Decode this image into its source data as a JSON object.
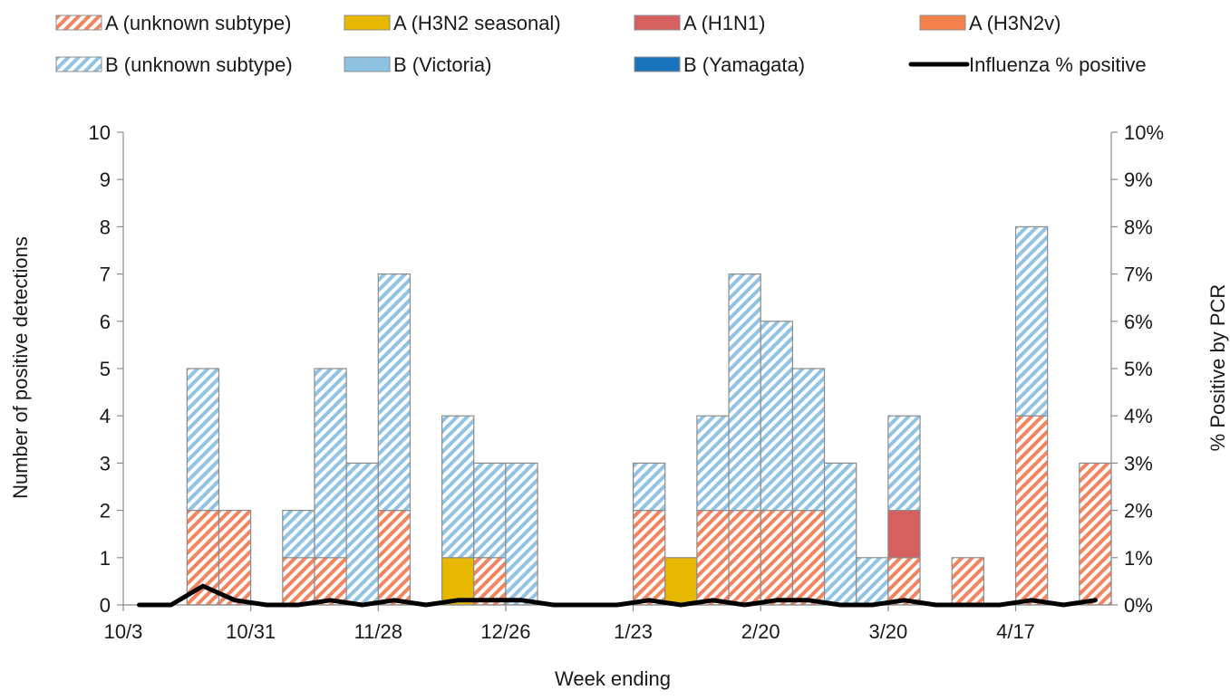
{
  "chart_data": {
    "type": "bar",
    "stacked": true,
    "xlabel": "Week ending",
    "ylabel": "Number of positive detections",
    "y2label": "% Positive by PCR",
    "ylim": [
      0,
      10
    ],
    "y2lim": [
      0,
      10
    ],
    "yticks": [
      "0",
      "1",
      "2",
      "3",
      "4",
      "5",
      "6",
      "7",
      "8",
      "9",
      "10"
    ],
    "y2ticks": [
      "0%",
      "1%",
      "2%",
      "3%",
      "4%",
      "5%",
      "6%",
      "7%",
      "8%",
      "9%",
      "10%"
    ],
    "xtick_labels": [
      {
        "index": 0,
        "label": "10/3"
      },
      {
        "index": 4,
        "label": "10/31"
      },
      {
        "index": 8,
        "label": "11/28"
      },
      {
        "index": 12,
        "label": "12/26"
      },
      {
        "index": 16,
        "label": "1/23"
      },
      {
        "index": 20,
        "label": "2/20"
      },
      {
        "index": 24,
        "label": "3/20"
      },
      {
        "index": 28,
        "label": "4/17"
      }
    ],
    "num_weeks": 31,
    "grid": false,
    "legend_position": "top",
    "series": [
      {
        "name": "A (unknown subtype)",
        "color": "#f4845f",
        "pattern": "hatch",
        "values": [
          0,
          0,
          2,
          2,
          0,
          1,
          1,
          0,
          2,
          0,
          0,
          1,
          0,
          0,
          0,
          0,
          2,
          0,
          2,
          2,
          2,
          2,
          0,
          0,
          1,
          0,
          1,
          0,
          4,
          0,
          3
        ]
      },
      {
        "name": "A (H3N2 seasonal)",
        "color": "#e8b800",
        "pattern": "solid",
        "values": [
          0,
          0,
          0,
          0,
          0,
          0,
          0,
          0,
          0,
          0,
          1,
          0,
          0,
          0,
          0,
          0,
          0,
          1,
          0,
          0,
          0,
          0,
          0,
          0,
          0,
          0,
          0,
          0,
          0,
          0,
          0
        ]
      },
      {
        "name": "A (H1N1)",
        "color": "#d65f5f",
        "pattern": "solid",
        "values": [
          0,
          0,
          0,
          0,
          0,
          0,
          0,
          0,
          0,
          0,
          0,
          0,
          0,
          0,
          0,
          0,
          0,
          0,
          0,
          0,
          0,
          0,
          0,
          0,
          1,
          0,
          0,
          0,
          0,
          0,
          0
        ]
      },
      {
        "name": "A (H3N2v)",
        "color": "#f4814a",
        "pattern": "solid",
        "values": [
          0,
          0,
          0,
          0,
          0,
          0,
          0,
          0,
          0,
          0,
          0,
          0,
          0,
          0,
          0,
          0,
          0,
          0,
          0,
          0,
          0,
          0,
          0,
          0,
          0,
          0,
          0,
          0,
          0,
          0,
          0
        ]
      },
      {
        "name": "B (unknown subtype)",
        "color": "#90c3e4",
        "pattern": "hatch",
        "values": [
          0,
          0,
          3,
          0,
          0,
          1,
          4,
          3,
          5,
          0,
          3,
          2,
          3,
          0,
          0,
          0,
          1,
          0,
          2,
          5,
          4,
          3,
          3,
          1,
          2,
          0,
          0,
          0,
          4,
          0,
          0
        ]
      },
      {
        "name": "B (Victoria)",
        "color": "#8ec2e2",
        "pattern": "solid",
        "values": [
          0,
          0,
          0,
          0,
          0,
          0,
          0,
          0,
          0,
          0,
          0,
          0,
          0,
          0,
          0,
          0,
          0,
          0,
          0,
          0,
          0,
          0,
          0,
          0,
          0,
          0,
          0,
          0,
          0,
          0,
          0
        ]
      },
      {
        "name": "B (Yamagata)",
        "color": "#1a72bb",
        "pattern": "solid",
        "values": [
          0,
          0,
          0,
          0,
          0,
          0,
          0,
          0,
          0,
          0,
          0,
          0,
          0,
          0,
          0,
          0,
          0,
          0,
          0,
          0,
          0,
          0,
          0,
          0,
          0,
          0,
          0,
          0,
          0,
          0,
          0
        ]
      }
    ],
    "line_series": {
      "name": "Influenza % positive",
      "color": "#000000",
      "axis": "right",
      "values": [
        0,
        0,
        0.4,
        0.1,
        0,
        0,
        0.1,
        0,
        0.1,
        0,
        0.1,
        0.1,
        0.1,
        0,
        0,
        0,
        0.1,
        0,
        0.1,
        0,
        0.1,
        0.1,
        0,
        0,
        0.1,
        0,
        0,
        0,
        0.1,
        0,
        0.1
      ]
    },
    "legend": [
      "A (unknown subtype)",
      "A (H3N2 seasonal)",
      "A (H1N1)",
      "A (H3N2v)",
      "B (unknown subtype)",
      "B (Victoria)",
      "B (Yamagata)",
      "Influenza % positive"
    ]
  }
}
